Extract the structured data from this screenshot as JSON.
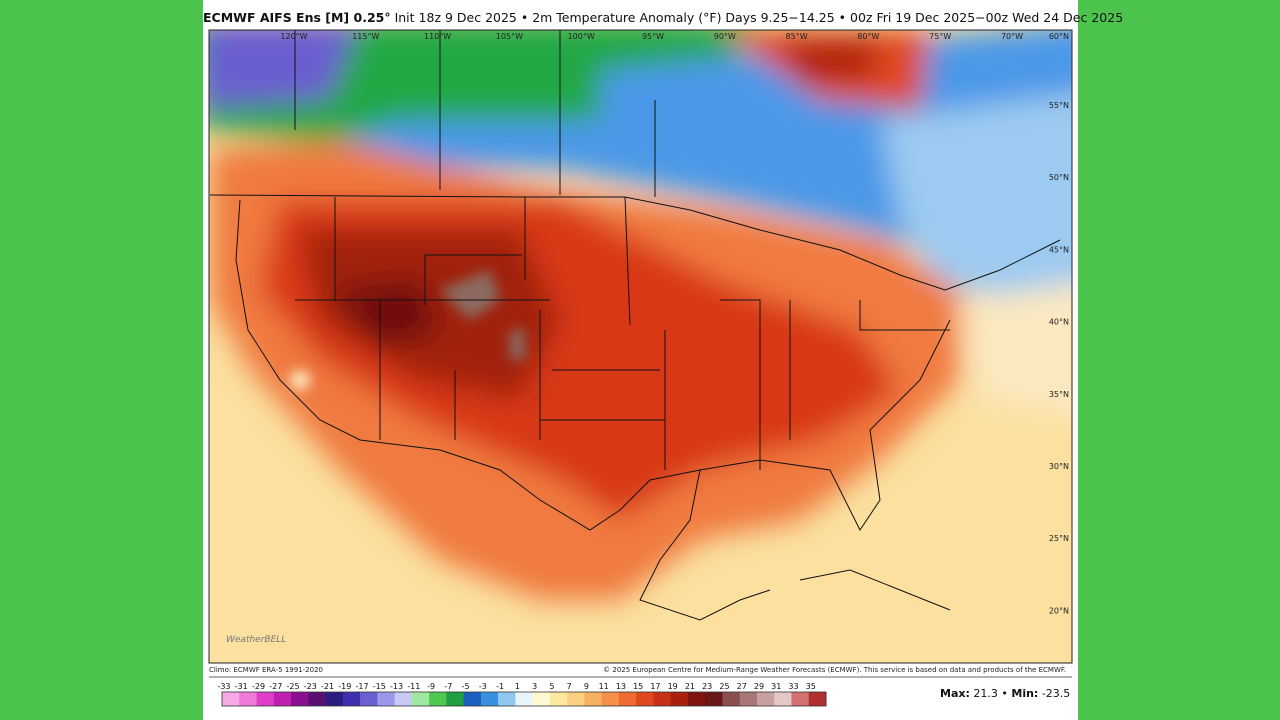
{
  "header": {
    "title_bold": "ECMWF AIFS Ens [M] 0.25°",
    "title_rest": "Init 18z 9 Dec 2025 • 2m Temperature Anomaly (°F) Days 9.25−14.25 • 00z Fri 19 Dec 2025−00z Wed 24 Dec 2025"
  },
  "map": {
    "longitudes": [
      "120°W",
      "115°W",
      "110°W",
      "105°W",
      "100°W",
      "95°W",
      "90°W",
      "85°W",
      "80°W",
      "75°W",
      "70°W"
    ],
    "latitudes": [
      "60°N",
      "55°N",
      "50°N",
      "45°N",
      "40°N",
      "35°N",
      "30°N",
      "25°N",
      "20°N"
    ],
    "logo": "WeatherBELL"
  },
  "footer": {
    "climo": "Climo: ECMWF ERA-5 1991-2020",
    "copyright": "© 2025 European Centre for Medium-Range Weather Forecasts (ECMWF). This service is based on data and products of the ECMWF.",
    "max_label": "Max:",
    "max": 21.3,
    "separator": "•",
    "min_label": "Min:",
    "min": -23.5
  },
  "colorbar": {
    "labels": [
      -33,
      -31,
      -29,
      -27,
      -25,
      -23,
      -21,
      -19,
      -17,
      -15,
      -13,
      -11,
      -9,
      -7,
      -5,
      -3,
      -1,
      1,
      3,
      5,
      7,
      9,
      11,
      13,
      15,
      17,
      19,
      21,
      23,
      25,
      27,
      29,
      31,
      33,
      35
    ],
    "colors": [
      "#f7a8e6",
      "#f07ad8",
      "#e040c8",
      "#c020b0",
      "#8a1090",
      "#5a1070",
      "#2a1c80",
      "#4030b0",
      "#6a60d0",
      "#9a98e8",
      "#c8c8f4",
      "#a0e8a0",
      "#50c850",
      "#20a040",
      "#1a60c0",
      "#3a90e0",
      "#90c8f0",
      "#e8f4fc",
      "#fff8d0",
      "#fde8a0",
      "#fbd080",
      "#f8b060",
      "#f49048",
      "#ee6a30",
      "#e04820",
      "#c83018",
      "#a82010",
      "#801410",
      "#681818",
      "#8a5050",
      "#a87878",
      "#c8a0a0",
      "#e4c8c8",
      "#d07070",
      "#b03030"
    ]
  }
}
